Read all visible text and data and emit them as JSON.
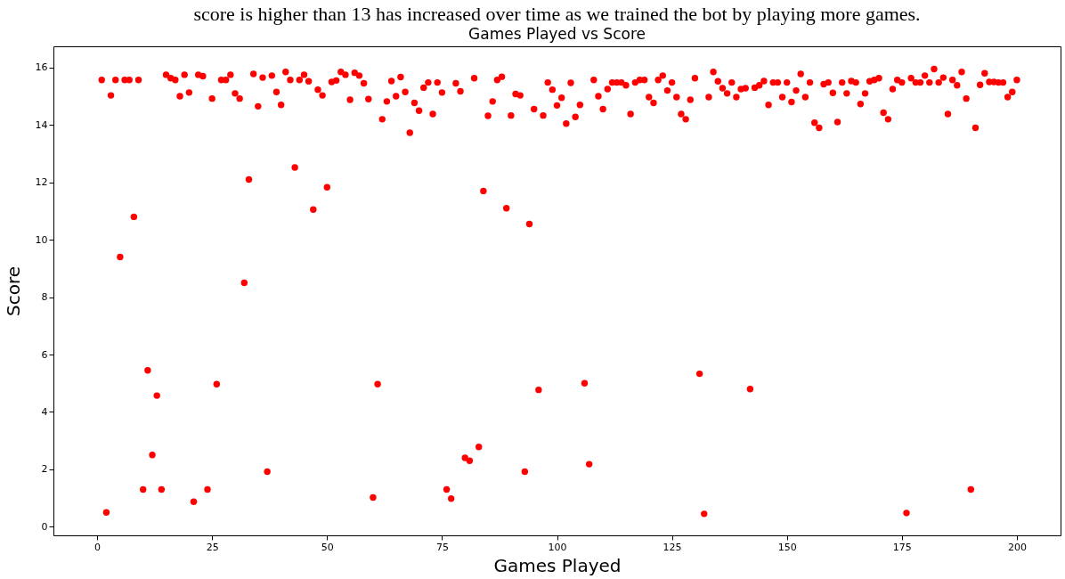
{
  "chart_data": {
    "type": "scatter",
    "title": "Games Played vs Score",
    "xlabel": "Games Played",
    "ylabel": "Score",
    "annotations": [
      "score is higher than 13 has increased over time as we trained the bot by playing more games."
    ],
    "x": [
      1,
      2,
      3,
      4,
      5,
      6,
      7,
      8,
      9,
      10,
      11,
      12,
      13,
      14,
      15,
      16,
      17,
      18,
      19,
      20,
      21,
      22,
      23,
      24,
      25,
      26,
      27,
      28,
      29,
      30,
      31,
      32,
      33,
      34,
      35,
      36,
      37,
      38,
      39,
      40,
      41,
      42,
      43,
      44,
      45,
      46,
      47,
      48,
      49,
      50,
      51,
      52,
      53,
      54,
      55,
      56,
      57,
      58,
      59,
      60,
      61,
      62,
      63,
      64,
      65,
      66,
      67,
      68,
      69,
      70,
      71,
      72,
      73,
      74,
      75,
      76,
      77,
      78,
      79,
      80,
      81,
      82,
      83,
      84,
      85,
      86,
      87,
      88,
      89,
      90,
      91,
      92,
      93,
      94,
      95,
      96,
      97,
      98,
      99,
      100,
      101,
      102,
      103,
      104,
      105,
      106,
      107,
      108,
      109,
      110,
      111,
      112,
      113,
      114,
      115,
      116,
      117,
      118,
      119,
      120,
      121,
      122,
      123,
      124,
      125,
      126,
      127,
      128,
      129,
      130,
      131,
      132,
      133,
      134,
      135,
      136,
      137,
      138,
      139,
      140,
      141,
      142,
      143,
      144,
      145,
      146,
      147,
      148,
      149,
      150,
      151,
      152,
      153,
      154,
      155,
      156,
      157,
      158,
      159,
      160,
      161,
      162,
      163,
      164,
      165,
      166,
      167,
      168,
      169,
      170,
      171,
      172,
      173,
      174,
      175,
      176,
      177,
      178,
      179,
      180,
      181,
      182,
      183,
      184,
      185,
      186,
      187,
      188,
      189,
      190,
      191,
      192,
      193,
      194,
      195,
      196,
      197,
      198,
      199,
      200
    ],
    "series": [
      {
        "color": "#ff0000",
        "values": [
          15.57,
          0.5,
          15.03,
          15.57,
          9.4,
          15.57,
          15.57,
          10.8,
          15.57,
          1.3,
          5.45,
          2.5,
          4.57,
          1.3,
          15.75,
          15.63,
          15.57,
          15.0,
          15.75,
          15.13,
          0.87,
          15.75,
          15.7,
          1.3,
          14.92,
          4.97,
          15.57,
          15.57,
          15.75,
          15.1,
          14.92,
          8.5,
          12.1,
          15.78,
          14.65,
          15.65,
          1.92,
          15.72,
          15.15,
          14.7,
          15.85,
          15.57,
          12.52,
          15.57,
          15.75,
          15.52,
          11.05,
          15.23,
          15.03,
          11.83,
          15.5,
          15.55,
          15.85,
          15.75,
          14.88,
          15.82,
          15.72,
          15.45,
          14.9,
          1.02,
          4.97,
          14.2,
          14.82,
          15.53,
          15.0,
          15.67,
          15.15,
          13.73,
          14.77,
          14.5,
          15.3,
          15.48,
          14.38,
          15.48,
          15.13,
          1.3,
          0.98,
          15.45,
          15.17,
          2.4,
          2.3,
          15.63,
          2.78,
          11.7,
          14.32,
          14.82,
          15.57,
          15.68,
          11.1,
          14.33,
          15.08,
          15.03,
          1.92,
          10.55,
          14.55,
          4.77,
          14.33,
          15.48,
          15.23,
          14.68,
          14.95,
          14.05,
          15.47,
          14.28,
          14.7,
          5.0,
          2.18,
          15.57,
          15.0,
          14.55,
          15.25,
          15.48,
          15.48,
          15.48,
          15.38,
          14.38,
          15.48,
          15.57,
          15.57,
          14.97,
          14.77,
          15.57,
          15.72,
          15.2,
          15.48,
          14.97,
          14.38,
          14.2,
          14.88,
          15.63,
          5.33,
          0.45,
          14.97,
          15.85,
          15.52,
          15.28,
          15.1,
          15.48,
          14.97,
          15.25,
          15.28,
          4.8,
          15.3,
          15.38,
          15.53,
          14.7,
          15.48,
          15.48,
          14.97,
          15.48,
          14.8,
          15.2,
          15.78,
          14.97,
          15.48,
          14.08,
          13.9,
          15.42,
          15.48,
          15.12,
          14.1,
          15.48,
          15.1,
          15.53,
          15.48,
          14.73,
          15.1,
          15.52,
          15.57,
          15.63,
          14.43,
          14.2,
          15.25,
          15.57,
          15.48,
          0.48,
          15.63,
          15.48,
          15.48,
          15.72,
          15.48,
          15.95,
          15.48,
          15.65,
          14.38,
          15.57,
          15.38,
          15.85,
          14.92,
          1.3,
          13.9,
          15.4,
          15.8,
          15.5,
          15.5,
          15.48,
          15.48,
          14.97,
          15.15,
          15.57
        ]
      }
    ],
    "xlim": [
      -9.5,
      209.5
    ],
    "ylim": [
      -0.3,
      16.74
    ],
    "xticks": [
      0,
      25,
      50,
      75,
      100,
      125,
      150,
      175,
      200
    ],
    "yticks": [
      0,
      2,
      4,
      6,
      8,
      10,
      12,
      14,
      16
    ],
    "marker": "circle",
    "grid": false,
    "legend": false
  }
}
